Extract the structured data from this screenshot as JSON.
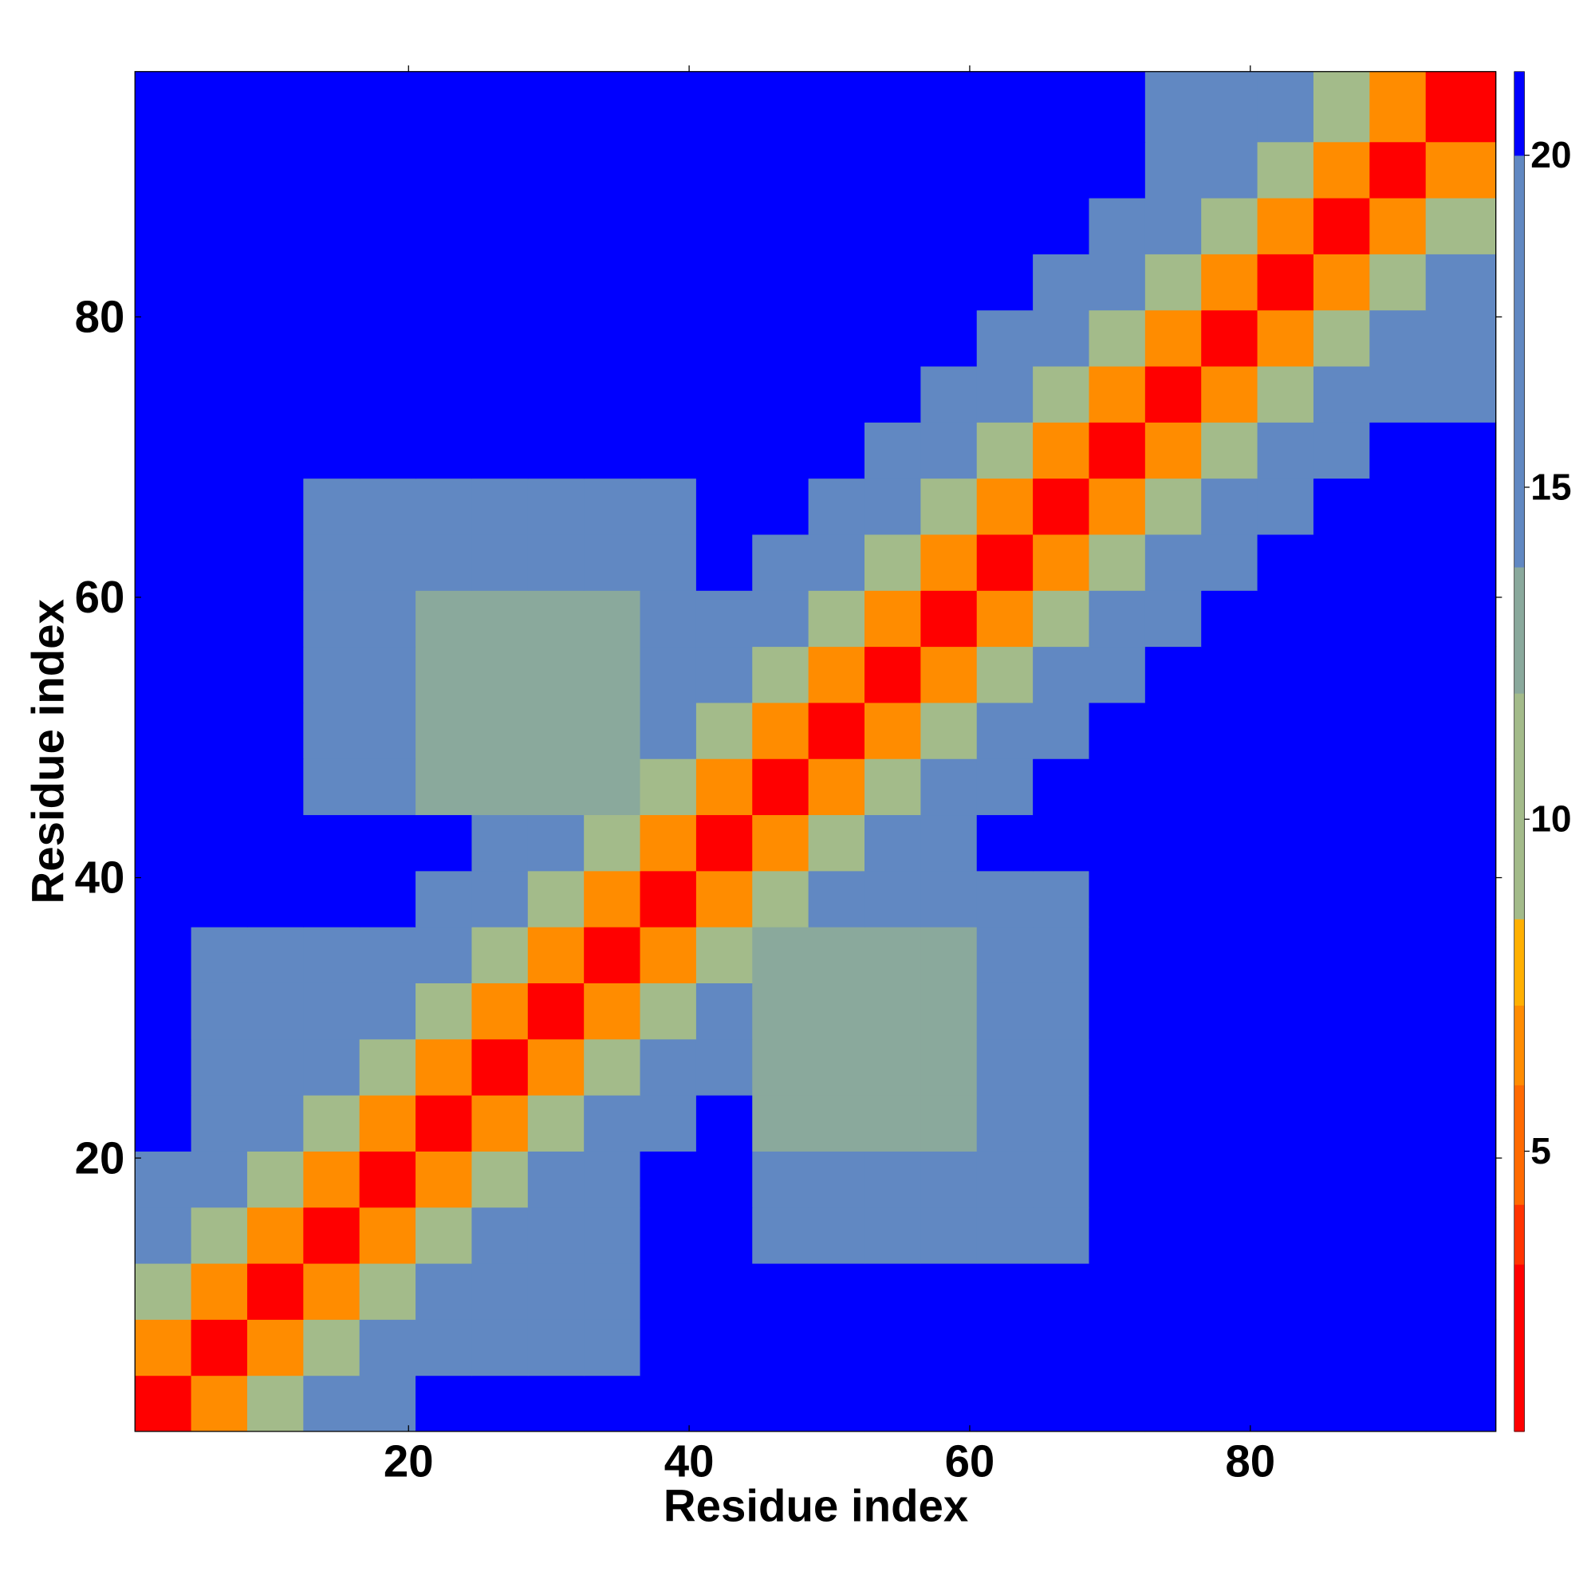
{
  "chart_data": {
    "type": "heatmap",
    "xlabel": "Residue index",
    "ylabel": "Residue index",
    "x_edges": [
      0.5,
      4.5,
      8.5,
      12.5,
      16.5,
      20.5,
      24.5,
      28.5,
      32.5,
      36.5,
      40.5,
      44.5,
      48.5,
      52.5,
      56.5,
      60.5,
      64.5,
      68.5,
      72.5,
      76.5,
      80.5,
      84.5,
      88.5,
      92.5,
      97.5
    ],
    "y_edges": [
      0.5,
      4.5,
      8.5,
      12.5,
      16.5,
      20.5,
      24.5,
      28.5,
      32.5,
      36.5,
      40.5,
      44.5,
      48.5,
      52.5,
      56.5,
      60.5,
      64.5,
      68.5,
      72.5,
      76.5,
      80.5,
      84.5,
      88.5,
      92.5,
      97.5
    ],
    "z": [
      [
        3,
        7,
        11,
        14.5,
        17.5,
        22,
        22,
        22,
        22,
        22,
        22,
        22,
        22,
        22,
        22,
        22,
        22,
        22,
        22,
        22,
        22,
        22,
        22,
        22
      ],
      [
        7,
        3,
        7,
        11,
        14.5,
        17.5,
        17,
        17,
        17,
        22,
        22,
        22,
        22,
        22,
        22,
        22,
        22,
        22,
        22,
        22,
        22,
        22,
        22,
        22
      ],
      [
        11,
        7,
        3,
        7,
        11,
        14.5,
        17,
        17,
        17,
        22,
        22,
        22,
        22,
        22,
        22,
        22,
        22,
        22,
        22,
        22,
        22,
        22,
        22,
        22
      ],
      [
        14.5,
        11,
        7,
        3,
        7,
        11,
        14.5,
        17,
        17,
        22,
        22,
        16,
        16,
        16,
        16,
        16,
        16,
        22,
        22,
        22,
        22,
        22,
        22,
        22
      ],
      [
        17.5,
        14.5,
        11,
        7,
        3,
        7,
        11,
        14.5,
        17.5,
        22,
        22,
        16,
        16,
        16,
        16,
        16,
        16,
        22,
        22,
        22,
        22,
        22,
        22,
        22
      ],
      [
        22,
        17.5,
        14.5,
        11,
        7,
        3,
        7,
        11,
        14.5,
        17.5,
        22,
        13,
        13,
        13,
        13,
        16,
        16,
        22,
        22,
        22,
        22,
        22,
        22,
        22
      ],
      [
        22,
        17,
        17,
        14.5,
        11,
        7,
        3,
        7,
        11,
        14.5,
        17.5,
        13,
        13,
        13,
        13,
        16,
        16,
        22,
        22,
        22,
        22,
        22,
        22,
        22
      ],
      [
        22,
        17,
        17,
        17,
        14.5,
        11,
        7,
        3,
        7,
        11,
        14.5,
        13,
        13,
        13,
        13,
        16,
        16,
        22,
        22,
        22,
        22,
        22,
        22,
        22
      ],
      [
        22,
        17,
        17,
        17,
        17.5,
        14.5,
        11,
        7,
        3,
        7,
        11,
        13,
        13,
        13,
        13,
        16,
        16,
        22,
        22,
        22,
        22,
        22,
        22,
        22
      ],
      [
        22,
        22,
        22,
        22,
        22,
        17.5,
        14.5,
        11,
        7,
        3,
        7,
        11,
        14.5,
        16,
        16,
        16,
        16,
        22,
        22,
        22,
        22,
        22,
        22,
        22
      ],
      [
        22,
        22,
        22,
        22,
        22,
        22,
        17.5,
        14.5,
        11,
        7,
        3,
        7,
        11,
        14.5,
        17.5,
        22,
        22,
        22,
        22,
        22,
        22,
        22,
        22,
        22
      ],
      [
        22,
        22,
        22,
        16,
        16,
        13,
        13,
        13,
        13,
        11,
        7,
        3,
        7,
        11,
        14.5,
        17.5,
        22,
        22,
        22,
        22,
        22,
        22,
        22,
        22
      ],
      [
        22,
        22,
        22,
        16,
        16,
        13,
        13,
        13,
        13,
        14.5,
        11,
        7,
        3,
        7,
        11,
        14.5,
        17.5,
        22,
        22,
        22,
        22,
        22,
        22,
        22
      ],
      [
        22,
        22,
        22,
        16,
        16,
        13,
        13,
        13,
        13,
        16,
        14.5,
        11,
        7,
        3,
        7,
        11,
        14.5,
        17.5,
        22,
        22,
        22,
        22,
        22,
        22
      ],
      [
        22,
        22,
        22,
        16,
        16,
        13,
        13,
        13,
        13,
        16,
        17.5,
        14.5,
        11,
        7,
        3,
        7,
        11,
        14.5,
        17.5,
        22,
        22,
        22,
        22,
        22
      ],
      [
        22,
        22,
        22,
        16,
        16,
        16,
        16,
        16,
        16,
        16,
        22,
        17.5,
        14.5,
        11,
        7,
        3,
        7,
        11,
        14.5,
        17.5,
        22,
        22,
        22,
        22
      ],
      [
        22,
        22,
        22,
        16,
        16,
        16,
        16,
        16,
        16,
        16,
        22,
        22,
        17.5,
        14.5,
        11,
        7,
        3,
        7,
        11,
        14.5,
        17.5,
        22,
        22,
        22
      ],
      [
        22,
        22,
        22,
        22,
        22,
        22,
        22,
        22,
        22,
        22,
        22,
        22,
        22,
        17.5,
        14.5,
        11,
        7,
        3,
        7,
        11,
        14.5,
        17.5,
        22,
        22
      ],
      [
        22,
        22,
        22,
        22,
        22,
        22,
        22,
        22,
        22,
        22,
        22,
        22,
        22,
        22,
        17.5,
        14.5,
        11,
        7,
        3,
        7,
        11,
        14.5,
        17.5,
        18
      ],
      [
        22,
        22,
        22,
        22,
        22,
        22,
        22,
        22,
        22,
        22,
        22,
        22,
        22,
        22,
        22,
        17.5,
        14.5,
        11,
        7,
        3,
        7,
        11,
        14.5,
        17.5
      ],
      [
        22,
        22,
        22,
        22,
        22,
        22,
        22,
        22,
        22,
        22,
        22,
        22,
        22,
        22,
        22,
        22,
        17.5,
        14.5,
        11,
        7,
        3,
        7,
        11,
        14.5
      ],
      [
        22,
        22,
        22,
        22,
        22,
        22,
        22,
        22,
        22,
        22,
        22,
        22,
        22,
        22,
        22,
        22,
        22,
        17.5,
        14.5,
        11,
        7,
        3,
        7,
        11
      ],
      [
        22,
        22,
        22,
        22,
        22,
        22,
        22,
        22,
        22,
        22,
        22,
        22,
        22,
        22,
        22,
        22,
        22,
        22,
        17.5,
        14.5,
        11,
        7,
        3,
        7
      ],
      [
        22,
        22,
        22,
        22,
        22,
        22,
        22,
        22,
        22,
        22,
        22,
        22,
        22,
        22,
        22,
        22,
        22,
        22,
        18,
        17.5,
        14.5,
        11,
        7,
        3
      ]
    ],
    "xlim": [
      0.5,
      97.5
    ],
    "ylim": [
      0.5,
      97.5
    ],
    "xticks": [
      20,
      40,
      60,
      80
    ],
    "yticks": [
      20,
      40,
      60,
      80
    ],
    "colorbar": {
      "lim": [
        0.78,
        21.26
      ],
      "ticks": [
        5,
        10,
        15,
        20
      ],
      "bounds": [
        0.78,
        3.3,
        4.2,
        6,
        7.2,
        8.5,
        11.9,
        13.8,
        20,
        21.26
      ],
      "colors": [
        "#ff0000",
        "#ff3300",
        "#ff6a00",
        "#ff8c00",
        "#ffb000",
        "#a3bb8a",
        "#8aa99c",
        "#6188c2",
        "#0000ff"
      ]
    }
  }
}
